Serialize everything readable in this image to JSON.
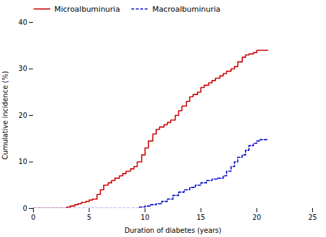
{
  "chart_data": {
    "type": "step",
    "title": "",
    "xlabel": "Duration of diabetes (years)",
    "ylabel": "Cumulative incidence (%)",
    "xlim": [
      0,
      25
    ],
    "ylim": [
      0,
      40
    ],
    "xticks": [
      0,
      5,
      10,
      15,
      20,
      25
    ],
    "yticks": [
      0,
      10,
      20,
      30,
      40
    ],
    "grid": false,
    "legend": "upper left",
    "series": [
      {
        "name": "Microalbuminuria",
        "color": "#cc0000",
        "line_style": "solid",
        "x": [
          0,
          0.5,
          1.0,
          1.5,
          2.0,
          2.5,
          3.0,
          3.3,
          3.7,
          4.0,
          4.3,
          4.7,
          5.0,
          5.3,
          5.7,
          6.0,
          6.3,
          6.7,
          7.0,
          7.3,
          7.7,
          8.0,
          8.3,
          8.7,
          9.0,
          9.3,
          9.7,
          10.0,
          10.3,
          10.7,
          11.0,
          11.3,
          11.7,
          12.0,
          12.3,
          12.7,
          13.0,
          13.3,
          13.7,
          14.0,
          14.3,
          14.7,
          15.0,
          15.3,
          15.7,
          16.0,
          16.3,
          16.7,
          17.0,
          17.3,
          17.7,
          18.0,
          18.3,
          18.7,
          19.0,
          19.3,
          19.7,
          20.0,
          20.3,
          20.7,
          21.0
        ],
        "values": [
          0,
          0,
          0,
          0,
          0,
          0,
          0.3,
          0.5,
          0.8,
          1.0,
          1.3,
          1.5,
          1.8,
          2.0,
          3.0,
          4.0,
          5.0,
          5.5,
          6.0,
          6.5,
          7.0,
          7.5,
          8.0,
          8.5,
          9.0,
          10.0,
          11.5,
          13.0,
          14.5,
          16.0,
          17.0,
          17.5,
          18.0,
          18.5,
          19.0,
          20.0,
          21.0,
          22.0,
          23.0,
          24.0,
          24.5,
          25.0,
          26.0,
          26.5,
          27.0,
          27.5,
          28.0,
          28.5,
          29.0,
          29.5,
          30.0,
          30.5,
          31.5,
          32.5,
          33.0,
          33.2,
          33.5,
          34.0,
          34.0,
          34.0,
          34.0
        ]
      },
      {
        "name": "Macroalbuminuria",
        "color": "#0000cc",
        "line_style": "dashed",
        "x": [
          0,
          1.0,
          2.0,
          3.0,
          4.0,
          5.0,
          6.0,
          7.0,
          8.0,
          9.0,
          9.5,
          10.0,
          10.5,
          11.0,
          11.5,
          12.0,
          12.5,
          13.0,
          13.5,
          14.0,
          14.5,
          15.0,
          15.5,
          16.0,
          16.5,
          17.0,
          17.3,
          17.7,
          18.0,
          18.3,
          18.7,
          19.0,
          19.3,
          19.7,
          20.0,
          20.3,
          20.7,
          21.0
        ],
        "values": [
          0,
          0,
          0,
          0,
          0,
          0,
          0,
          0,
          0,
          0,
          0.3,
          0.5,
          0.8,
          1.0,
          1.5,
          2.0,
          2.8,
          3.5,
          4.0,
          4.5,
          5.0,
          5.5,
          6.0,
          6.3,
          6.5,
          7.0,
          8.0,
          9.0,
          10.0,
          11.0,
          11.5,
          12.5,
          13.5,
          14.0,
          14.5,
          14.8,
          14.8,
          14.8
        ]
      }
    ]
  }
}
